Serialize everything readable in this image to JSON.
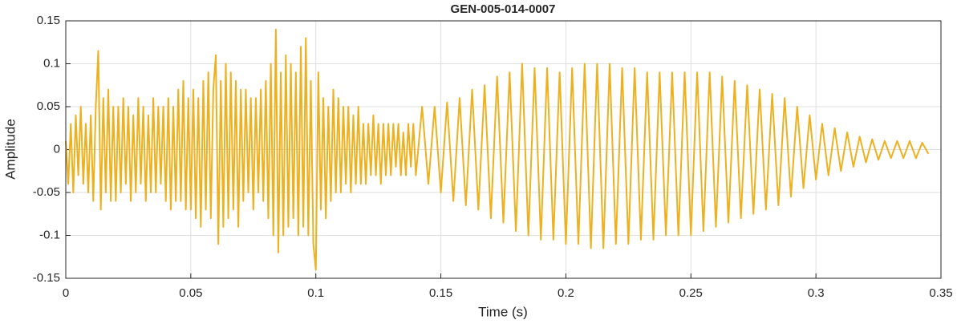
{
  "chart_data": {
    "type": "line",
    "title": "GEN-005-014-0007",
    "x_label": "Time (s)",
    "y_label": "Amplitude",
    "grid": true,
    "xlim": [
      0,
      0.35
    ],
    "ylim": [
      -0.15,
      0.15
    ],
    "xticks": [
      0,
      0.05,
      0.1,
      0.15,
      0.2,
      0.25,
      0.3,
      0.35
    ],
    "yticks": [
      -0.15,
      -0.1,
      -0.05,
      0,
      0.05,
      0.1,
      0.15
    ],
    "x": [
      0,
      0.001,
      0.002,
      0.003,
      0.004,
      0.005,
      0.006,
      0.007,
      0.008,
      0.009,
      0.01,
      0.011,
      0.012,
      0.013,
      0.014,
      0.015,
      0.016,
      0.017,
      0.018,
      0.019,
      0.02,
      0.021,
      0.022,
      0.023,
      0.024,
      0.025,
      0.026,
      0.027,
      0.028,
      0.029,
      0.03,
      0.031,
      0.032,
      0.033,
      0.034,
      0.035,
      0.036,
      0.037,
      0.038,
      0.039,
      0.04,
      0.041,
      0.042,
      0.043,
      0.044,
      0.045,
      0.046,
      0.047,
      0.048,
      0.049,
      0.05,
      0.051,
      0.052,
      0.053,
      0.054,
      0.055,
      0.056,
      0.057,
      0.058,
      0.059,
      0.06,
      0.061,
      0.062,
      0.063,
      0.064,
      0.065,
      0.066,
      0.067,
      0.068,
      0.069,
      0.07,
      0.071,
      0.072,
      0.073,
      0.074,
      0.075,
      0.076,
      0.077,
      0.078,
      0.079,
      0.08,
      0.081,
      0.082,
      0.083,
      0.084,
      0.085,
      0.086,
      0.087,
      0.088,
      0.089,
      0.09,
      0.091,
      0.092,
      0.093,
      0.094,
      0.095,
      0.096,
      0.097,
      0.098,
      0.099,
      0.1,
      0.101,
      0.102,
      0.103,
      0.104,
      0.105,
      0.106,
      0.107,
      0.108,
      0.109,
      0.11,
      0.111,
      0.112,
      0.113,
      0.114,
      0.115,
      0.116,
      0.117,
      0.118,
      0.119,
      0.12,
      0.121,
      0.122,
      0.123,
      0.124,
      0.125,
      0.126,
      0.127,
      0.128,
      0.129,
      0.13,
      0.131,
      0.132,
      0.133,
      0.134,
      0.135,
      0.136,
      0.137,
      0.138,
      0.139,
      0.14,
      0.1425,
      0.145,
      0.1475,
      0.15,
      0.1525,
      0.155,
      0.1575,
      0.16,
      0.1625,
      0.165,
      0.1675,
      0.17,
      0.1725,
      0.175,
      0.1775,
      0.18,
      0.1825,
      0.185,
      0.1875,
      0.19,
      0.1925,
      0.195,
      0.1975,
      0.2,
      0.2025,
      0.205,
      0.2075,
      0.21,
      0.2125,
      0.215,
      0.2175,
      0.22,
      0.2225,
      0.225,
      0.2275,
      0.23,
      0.2325,
      0.235,
      0.2375,
      0.24,
      0.2425,
      0.245,
      0.2475,
      0.25,
      0.2525,
      0.255,
      0.2575,
      0.26,
      0.2625,
      0.265,
      0.2675,
      0.27,
      0.2725,
      0.275,
      0.2775,
      0.28,
      0.2825,
      0.285,
      0.2875,
      0.29,
      0.2925,
      0.295,
      0.2975,
      0.3,
      0.3025,
      0.305,
      0.3075,
      0.31,
      0.3125,
      0.315,
      0.3175,
      0.32,
      0.3225,
      0.325,
      0.3275,
      0.33,
      0.3325,
      0.335,
      0.3375,
      0.34,
      0.3425,
      0.345
    ],
    "series": [
      {
        "color": "#EDB120",
        "values": [
          0.01,
          -0.04,
          0.03,
          -0.05,
          0.04,
          -0.03,
          0.05,
          -0.04,
          0.03,
          -0.05,
          0.04,
          -0.06,
          0.05,
          0.115,
          -0.07,
          0.06,
          -0.05,
          0.07,
          -0.06,
          0.05,
          -0.06,
          0.05,
          -0.05,
          0.06,
          -0.04,
          0.05,
          -0.06,
          0.04,
          -0.05,
          0.06,
          -0.04,
          0.05,
          -0.06,
          0.04,
          -0.05,
          0.06,
          -0.05,
          0.05,
          -0.04,
          0.05,
          -0.06,
          0.06,
          -0.07,
          0.05,
          -0.06,
          0.07,
          -0.06,
          0.08,
          -0.07,
          0.06,
          -0.07,
          0.07,
          -0.08,
          0.06,
          -0.09,
          0.08,
          -0.07,
          0.09,
          -0.08,
          0.07,
          0.11,
          -0.11,
          0.08,
          -0.09,
          0.1,
          -0.08,
          0.09,
          -0.07,
          0.08,
          -0.09,
          0.07,
          -0.06,
          0.07,
          -0.05,
          0.06,
          -0.07,
          0.06,
          -0.05,
          0.07,
          -0.06,
          0.08,
          -0.08,
          0.1,
          -0.1,
          0.14,
          -0.12,
          0.09,
          -0.1,
          0.11,
          -0.09,
          0.1,
          -0.08,
          0.09,
          -0.1,
          0.12,
          -0.09,
          0.13,
          -0.1,
          0.08,
          -0.11,
          -0.14,
          0.09,
          -0.07,
          0.06,
          -0.08,
          0.05,
          -0.06,
          0.07,
          -0.05,
          0.06,
          -0.05,
          0.05,
          -0.04,
          0.05,
          -0.05,
          0.04,
          -0.04,
          0.05,
          -0.04,
          0.03,
          -0.04,
          0.03,
          -0.03,
          0.04,
          -0.03,
          0.03,
          -0.04,
          0.03,
          -0.03,
          0.03,
          -0.03,
          0.03,
          -0.02,
          0.03,
          -0.03,
          0.02,
          -0.03,
          0.03,
          -0.02,
          0.03,
          -0.03,
          0.05,
          -0.04,
          0.05,
          -0.05,
          0.055,
          -0.06,
          0.06,
          -0.065,
          0.07,
          -0.07,
          0.075,
          -0.08,
          0.085,
          -0.085,
          0.09,
          -0.095,
          0.1,
          -0.1,
          0.095,
          -0.105,
          0.095,
          -0.105,
          0.09,
          -0.11,
          0.095,
          -0.11,
          0.1,
          -0.115,
          0.1,
          -0.115,
          0.1,
          -0.11,
          0.095,
          -0.11,
          0.095,
          -0.105,
          0.09,
          -0.105,
          0.09,
          -0.1,
          0.09,
          -0.1,
          0.09,
          -0.1,
          0.09,
          -0.095,
          0.09,
          -0.09,
          0.085,
          -0.085,
          0.08,
          -0.08,
          0.075,
          -0.075,
          0.07,
          -0.07,
          0.065,
          -0.065,
          0.06,
          -0.055,
          0.05,
          -0.045,
          0.04,
          -0.035,
          0.03,
          -0.03,
          0.025,
          -0.025,
          0.02,
          -0.02,
          0.015,
          -0.015,
          0.012,
          -0.012,
          0.01,
          -0.01,
          0.01,
          -0.01,
          0.01,
          -0.01,
          0.008,
          -0.005
        ]
      }
    ]
  }
}
